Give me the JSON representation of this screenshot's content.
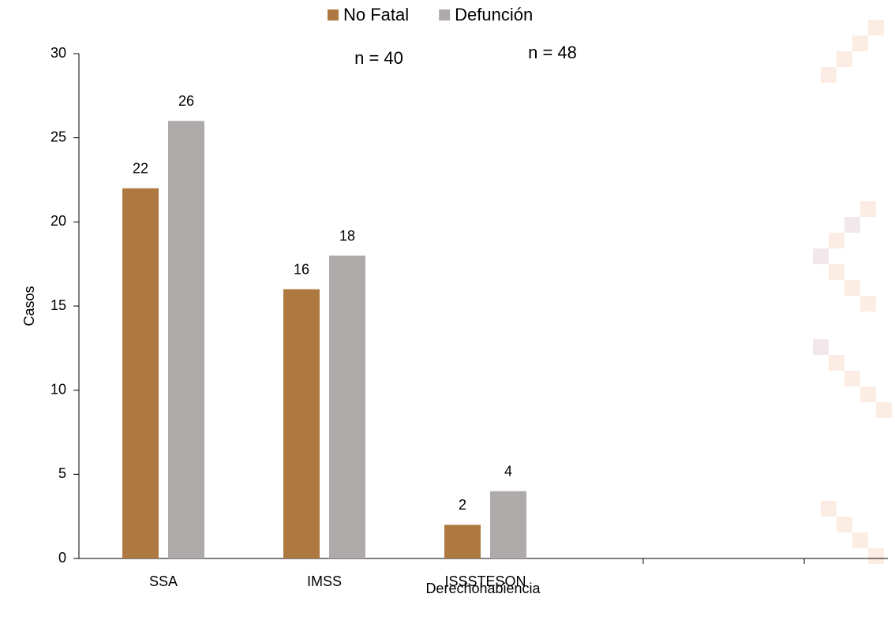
{
  "chart_data": {
    "type": "bar",
    "categories": [
      "SSA",
      "IMSS",
      "ISSSTESON",
      null,
      null
    ],
    "series": [
      {
        "name": "No Fatal",
        "color": "#ae7941",
        "values": [
          22,
          16,
          2,
          null,
          null
        ]
      },
      {
        "name": "Defunción",
        "color": "#aeaaaa",
        "values": [
          26,
          18,
          4,
          null,
          null
        ]
      }
    ],
    "annotations": [
      "n = 40",
      "n = 48"
    ],
    "x_label": "Derechohabiencia",
    "y_label": "Casos",
    "ylim": [
      0,
      30
    ],
    "yticks": [
      0,
      5,
      10,
      15,
      20,
      25,
      30
    ],
    "legend": "top"
  }
}
